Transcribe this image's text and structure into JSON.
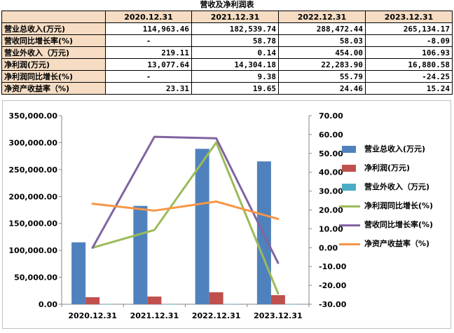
{
  "table": {
    "title": "营收及净利润表",
    "corner": "",
    "columns": [
      "2020.12.31",
      "2021.12.31",
      "2022.12.31",
      "2023.12.31"
    ],
    "rows": [
      {
        "label": "营业总收入(万元)",
        "values": [
          "114,963.46",
          "182,539.74",
          "288,472.44",
          "265,134.17"
        ]
      },
      {
        "label": "营收同比增长率(%)",
        "values": [
          "-",
          "58.78",
          "58.03",
          "-8.09"
        ]
      },
      {
        "label": "营业外收入（万元)",
        "values": [
          "219.11",
          "0.14",
          "454.00",
          "106.93"
        ]
      },
      {
        "label": "净利润(万元)",
        "values": [
          "13,077.64",
          "14,304.18",
          "22,283.90",
          "16,880.58"
        ]
      },
      {
        "label": "净利润同比增长(%)",
        "values": [
          "-",
          "9.38",
          "55.79",
          "-24.25"
        ]
      },
      {
        "label": "净资产收益率（%)",
        "values": [
          "23.31",
          "19.65",
          "24.46",
          "15.24"
        ]
      }
    ]
  },
  "chart_data": {
    "type": "bar",
    "categories": [
      "2020.12.31",
      "2021.12.31",
      "2022.12.31",
      "2023.12.31"
    ],
    "y_left": {
      "ylim": [
        0,
        350000
      ],
      "ticks": [
        0,
        50000,
        100000,
        150000,
        200000,
        250000,
        300000,
        350000
      ],
      "tick_labels": [
        "0.00",
        "50,000.00",
        "100,000.00",
        "150,000.00",
        "200,000.00",
        "250,000.00",
        "300,000.00",
        "350,000.00"
      ]
    },
    "y_right": {
      "ylim": [
        -30,
        70
      ],
      "ticks": [
        -30,
        -20,
        -10,
        0,
        10,
        20,
        30,
        40,
        50,
        60,
        70
      ],
      "tick_labels": [
        "-30.00",
        "-20.00",
        "-10.00",
        "0.00",
        "10.00",
        "20.00",
        "30.00",
        "40.00",
        "50.00",
        "60.00",
        "70.00"
      ]
    },
    "series": [
      {
        "name": "营业总收入(万元)",
        "type": "bar",
        "axis": "left",
        "color": "#4f81bd",
        "values": [
          114963.46,
          182539.74,
          288472.44,
          265134.17
        ]
      },
      {
        "name": "净利润(万元)",
        "type": "bar",
        "axis": "left",
        "color": "#c0504d",
        "values": [
          13077.64,
          14304.18,
          22283.9,
          16880.58
        ]
      },
      {
        "name": "营业外收入（万元)",
        "type": "bar",
        "axis": "left",
        "color": "#4bacc6",
        "values": [
          219.11,
          0.14,
          454.0,
          106.93
        ]
      },
      {
        "name": "净利润同比增长(%)",
        "type": "line",
        "axis": "right",
        "color": "#9bbb59",
        "values": [
          0,
          9.38,
          55.79,
          -24.25
        ]
      },
      {
        "name": "营收同比增长率(%)",
        "type": "line",
        "axis": "right",
        "color": "#8064a2",
        "values": [
          0,
          58.78,
          58.03,
          -8.09
        ]
      },
      {
        "name": "净资产收益率（%)",
        "type": "line",
        "axis": "right",
        "color": "#f79646",
        "values": [
          23.31,
          19.65,
          24.46,
          15.24
        ]
      }
    ],
    "legend_position": "right",
    "grid": false
  }
}
